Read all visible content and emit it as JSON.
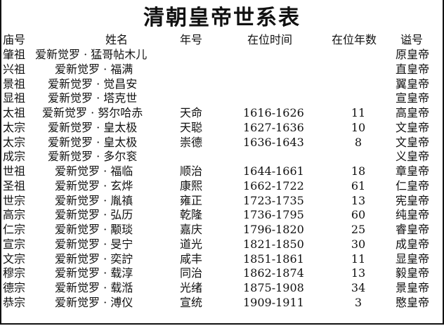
{
  "title": "清朝皇帝世系表",
  "headers": {
    "temple_name": "庙号",
    "name": "姓名",
    "era_name": "年号",
    "reign_period": "在位时间",
    "reign_years": "在位年数",
    "posthumous_name": "谥号"
  },
  "rows": [
    {
      "temple_name": "肇祖",
      "name": "爱新觉罗 · 猛哥帖木儿",
      "era_name": "",
      "reign_period": "",
      "reign_years": "",
      "posthumous_name": "原皇帝"
    },
    {
      "temple_name": "兴祖",
      "name": "爱新觉罗 · 福满",
      "era_name": "",
      "reign_period": "",
      "reign_years": "",
      "posthumous_name": "直皇帝"
    },
    {
      "temple_name": "景祖",
      "name": "爱新觉罗 · 觉昌安",
      "era_name": "",
      "reign_period": "",
      "reign_years": "",
      "posthumous_name": "翼皇帝"
    },
    {
      "temple_name": "显祖",
      "name": "爱新觉罗 · 塔克世",
      "era_name": "",
      "reign_period": "",
      "reign_years": "",
      "posthumous_name": "宣皇帝"
    },
    {
      "temple_name": "太祖",
      "name": "爱新觉罗 · 努尔哈赤",
      "era_name": "天命",
      "reign_period": "1616-1626",
      "reign_years": "11",
      "posthumous_name": "高皇帝"
    },
    {
      "temple_name": "太宗",
      "name": "爱新觉罗 · 皇太极",
      "era_name": "天聪",
      "reign_period": "1627-1636",
      "reign_years": "10",
      "posthumous_name": "文皇帝"
    },
    {
      "temple_name": "太宗",
      "name": "爱新觉罗 · 皇太极",
      "era_name": "崇德",
      "reign_period": "1636-1643",
      "reign_years": "8",
      "posthumous_name": "文皇帝"
    },
    {
      "temple_name": "成宗",
      "name": "爱新觉罗 · 多尔衮",
      "era_name": "",
      "reign_period": "",
      "reign_years": "",
      "posthumous_name": "义皇帝"
    },
    {
      "temple_name": "世祖",
      "name": "爱新觉罗 · 福临",
      "era_name": "顺治",
      "reign_period": "1644-1661",
      "reign_years": "18",
      "posthumous_name": "章皇帝"
    },
    {
      "temple_name": "圣祖",
      "name": "爱新觉罗 · 玄烨",
      "era_name": "康熙",
      "reign_period": "1662-1722",
      "reign_years": "61",
      "posthumous_name": "仁皇帝"
    },
    {
      "temple_name": "世宗",
      "name": "爱新觉罗 · 胤禛",
      "era_name": "雍正",
      "reign_period": "1723-1735",
      "reign_years": "13",
      "posthumous_name": "宪皇帝"
    },
    {
      "temple_name": "高宗",
      "name": "爱新觉罗 · 弘历",
      "era_name": "乾隆",
      "reign_period": "1736-1795",
      "reign_years": "60",
      "posthumous_name": "纯皇帝"
    },
    {
      "temple_name": "仁宗",
      "name": "爱新觉罗 · 颙琰",
      "era_name": "嘉庆",
      "reign_period": "1796-1820",
      "reign_years": "25",
      "posthumous_name": "睿皇帝"
    },
    {
      "temple_name": "宣宗",
      "name": "爱新觉罗 · 旻宁",
      "era_name": "道光",
      "reign_period": "1821-1850",
      "reign_years": "30",
      "posthumous_name": "成皇帝"
    },
    {
      "temple_name": "文宗",
      "name": "爱新觉罗 · 奕詝",
      "era_name": "咸丰",
      "reign_period": "1851-1861",
      "reign_years": "11",
      "posthumous_name": "显皇帝"
    },
    {
      "temple_name": "穆宗",
      "name": "爱新觉罗 · 载淳",
      "era_name": "同治",
      "reign_period": "1862-1874",
      "reign_years": "13",
      "posthumous_name": "毅皇帝"
    },
    {
      "temple_name": "德宗",
      "name": "爱新觉罗 · 载湉",
      "era_name": "光绪",
      "reign_period": "1875-1908",
      "reign_years": "34",
      "posthumous_name": "景皇帝"
    },
    {
      "temple_name": "恭宗",
      "name": "爱新觉罗 · 溥仪",
      "era_name": "宣统",
      "reign_period": "1909-1911",
      "reign_years": "3",
      "posthumous_name": "愍皇帝"
    }
  ]
}
